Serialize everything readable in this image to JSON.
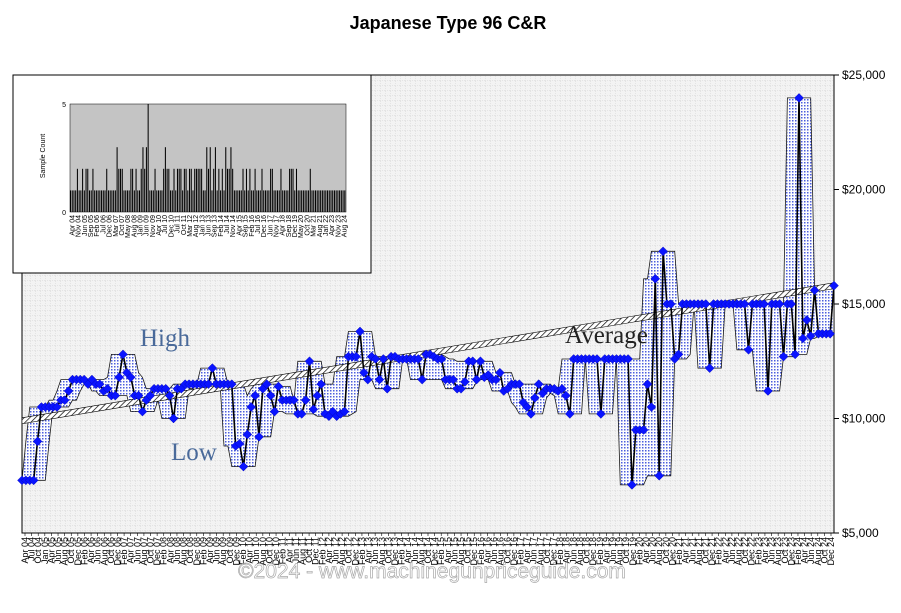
{
  "chart_data": [
    {
      "type": "line",
      "title": "Japanese Type 96 C&R",
      "xlabel": "",
      "ylabel": "",
      "ylim": [
        5000,
        25000
      ],
      "y_tick_labels": [
        "$5,000",
        "$10,000",
        "$15,000",
        "$20,000",
        "$25,000"
      ],
      "y_ticks": [
        5000,
        10000,
        15000,
        20000,
        25000
      ],
      "x_tick_labels": [
        "Apr 04",
        "Jul 04",
        "Oct 04",
        "Jan 05",
        "Apr 05",
        "Jun 05",
        "Aug 05",
        "Oct 05",
        "Dec 05",
        "Feb 06",
        "Apr 06",
        "Jun 06",
        "Aug 06",
        "Oct 06",
        "Dec 06",
        "Feb 07",
        "Apr 07",
        "Jun 07",
        "Aug 07",
        "Oct 07",
        "Dec 07",
        "Feb 08",
        "Apr 08",
        "Jun 08",
        "Aug 08",
        "Oct 08",
        "Dec 08",
        "Feb 09",
        "Apr 09",
        "Jun 09",
        "Aug 09",
        "Oct 09",
        "Dec 09",
        "Feb 10",
        "Apr 10",
        "Jun 10",
        "Aug 10",
        "Oct 10",
        "Dec 10",
        "Feb 11",
        "Apr 11",
        "Jun 11",
        "Aug 11",
        "Oct 11",
        "Dec 11",
        "Feb 12",
        "Apr 12",
        "Jun 12",
        "Aug 12",
        "Oct 12",
        "Dec 12",
        "Feb 13",
        "Apr 13",
        "Jun 13",
        "Aug 13",
        "Oct 13",
        "Dec 13",
        "Feb 14",
        "Apr 14",
        "Jun 14",
        "Aug 14",
        "Oct 14",
        "Dec 14",
        "Feb 15",
        "Apr 15",
        "Jun 15",
        "Aug 15",
        "Oct 15",
        "Dec 15",
        "Feb 16",
        "Apr 16",
        "Jun 16",
        "Aug 16",
        "Oct 16",
        "Dec 16",
        "Feb 17",
        "Apr 17",
        "Jun 17",
        "Aug 17",
        "Oct 17",
        "Dec 17",
        "Feb 18",
        "Apr 18",
        "Jun 18",
        "Aug 18",
        "Oct 18",
        "Dec 18",
        "Feb 19",
        "Apr 19",
        "Jun 19",
        "Aug 19",
        "Oct 19",
        "Dec 19",
        "Feb 20",
        "Apr 20",
        "Jun 20",
        "Aug 20",
        "Oct 20",
        "Dec 20",
        "Feb 21",
        "Apr 21",
        "Jun 21",
        "Aug 21",
        "Oct 21",
        "Dec 21",
        "Feb 22",
        "Apr 22",
        "Jun 22",
        "Aug 22",
        "Oct 22",
        "Dec 22",
        "Feb 23",
        "Apr 23",
        "Jun 23",
        "Aug 23",
        "Oct 23",
        "Dec 23",
        "Feb 24",
        "Apr 24",
        "Jun 24",
        "Aug 24",
        "Oct 24",
        "Dec 24"
      ],
      "annotations": [
        "High",
        "Low",
        "Average"
      ],
      "watermark": "©2024 - www.machinegunpriceguide.com",
      "grid": true,
      "colors": {
        "price_line": "#000000",
        "marker": "#0a14ff",
        "range_fill": "#3c50dc",
        "average_band": "#ffffff",
        "annotation_text": "#4a6a9a",
        "plot_bg": "#f2f2f2"
      },
      "series": [
        {
          "role": "price",
          "values": [
            7300,
            7300,
            7300,
            7300,
            9000,
            10500,
            10500,
            10500,
            10500,
            10500,
            10800,
            10800,
            11200,
            11700,
            11700,
            11700,
            11700,
            11500,
            11700,
            11500,
            11500,
            11200,
            11300,
            11000,
            11000,
            11800,
            12800,
            12000,
            11800,
            11000,
            11000,
            10300,
            10800,
            11000,
            11300,
            11300,
            11300,
            11300,
            11000,
            10000,
            11300,
            11300,
            11500,
            11500,
            11500,
            11500,
            11500,
            11500,
            11500,
            12200,
            11500,
            11500,
            11500,
            11500,
            11500,
            8800,
            8900,
            7900,
            9300,
            10500,
            11000,
            9200,
            11300,
            11500,
            11000,
            10300,
            11400,
            10800,
            10800,
            10800,
            10800,
            10200,
            10200,
            10800,
            12500,
            10400,
            11000,
            11500,
            10200,
            10100,
            10300,
            10100,
            10200,
            10300,
            12700,
            12700,
            12700,
            13800,
            12000,
            11700,
            12700,
            12600,
            11700,
            12600,
            11300,
            12700,
            12700,
            12600,
            12600,
            12600,
            12600,
            12600,
            12600,
            11700,
            12800,
            12800,
            12700,
            12600,
            12600,
            11700,
            11700,
            11700,
            11300,
            11300,
            11600,
            12500,
            12500,
            11700,
            12500,
            11800,
            11900,
            11700,
            11700,
            12000,
            11200,
            11300,
            11500,
            11500,
            11500,
            10700,
            10500,
            10200,
            10900,
            11500,
            11100,
            11300,
            11300,
            11300,
            11200,
            11300,
            11000,
            10200,
            12600,
            12600,
            12600,
            12600,
            12600,
            12600,
            12600,
            10200,
            12600,
            12600,
            12600,
            12600,
            12600,
            12600,
            12600,
            7100,
            9500,
            9500,
            9500,
            11500,
            10500,
            16100,
            7500,
            17300,
            15000,
            15000,
            12600,
            12800,
            15000,
            15000,
            15000,
            15000,
            15000,
            15000,
            15000,
            12200,
            15000,
            15000,
            15000,
            15000,
            15000,
            15000,
            15000,
            15000,
            15000,
            13000,
            15000,
            15000,
            15000,
            15000,
            11200,
            15000,
            15000,
            15000,
            12700,
            15000,
            15000,
            12800,
            24000,
            13500,
            14300,
            13600,
            15600,
            13700,
            13700,
            13700,
            13700,
            15800
          ]
        },
        {
          "role": "average",
          "values": [
            9900,
            15800
          ]
        }
      ]
    },
    {
      "type": "bar",
      "title": "",
      "ylabel": "Sample Count",
      "ylim": [
        0,
        5
      ],
      "y_tick_labels": [
        "0",
        "5"
      ],
      "x_tick_labels": [
        "Apr 04",
        "Nov 04",
        "Jun 05",
        "Sep 05",
        "Feb 06",
        "Jul 06",
        "Dec 06",
        "Mar 07",
        "Oct 07",
        "May 08",
        "Aug 08",
        "Jan 09",
        "Jun 09",
        "Nov 09",
        "Apr 10",
        "Jul 10",
        "Dec 10",
        "Jul 11",
        "Oct 11",
        "Mar 12",
        "Aug 12",
        "Jan 13",
        "Jun 13",
        "Sep 13",
        "Feb 14",
        "Jul 14",
        "Nov 14",
        "Apr 15",
        "Sep 15",
        "Feb 16",
        "Jul 16",
        "Dec 16",
        "Jun 17",
        "Nov 17",
        "Apr 18",
        "Sep 18",
        "Dec 19",
        "May 20",
        "Oct 20",
        "Mar 21",
        "Aug 21",
        "Jan 22",
        "Apr 23",
        "Nov 23",
        "Aug 24"
      ],
      "values": [
        1,
        1,
        1,
        1,
        2,
        1,
        1,
        2,
        1,
        2,
        2,
        1,
        1,
        2,
        1,
        1,
        1,
        1,
        1,
        1,
        1,
        2,
        1,
        1,
        1,
        1,
        1,
        3,
        2,
        2,
        2,
        1,
        1,
        1,
        1,
        2,
        2,
        1,
        2,
        1,
        1,
        2,
        3,
        2,
        3,
        5,
        1,
        1,
        1,
        2,
        1,
        1,
        1,
        1,
        2,
        3,
        2,
        2,
        1,
        1,
        2,
        1,
        2,
        2,
        2,
        1,
        2,
        2,
        1,
        2,
        2,
        1,
        2,
        2,
        2,
        2,
        2,
        1,
        1,
        3,
        2,
        3,
        1,
        2,
        3,
        1,
        2,
        1,
        2,
        1,
        3,
        2,
        2,
        3,
        2,
        1,
        1,
        1,
        1,
        1,
        2,
        1,
        2,
        1,
        2,
        1,
        1,
        2,
        1,
        1,
        1,
        2,
        1,
        1,
        1,
        1,
        2,
        2,
        1,
        1,
        1,
        1,
        2,
        1,
        1,
        1,
        1,
        2,
        2,
        2,
        1,
        2,
        1,
        1,
        1,
        1,
        1,
        1,
        1,
        2,
        1,
        1,
        1,
        1,
        1,
        1,
        1,
        1,
        1,
        1,
        1,
        1,
        1,
        1,
        1,
        1,
        1,
        1,
        1,
        1
      ]
    }
  ]
}
